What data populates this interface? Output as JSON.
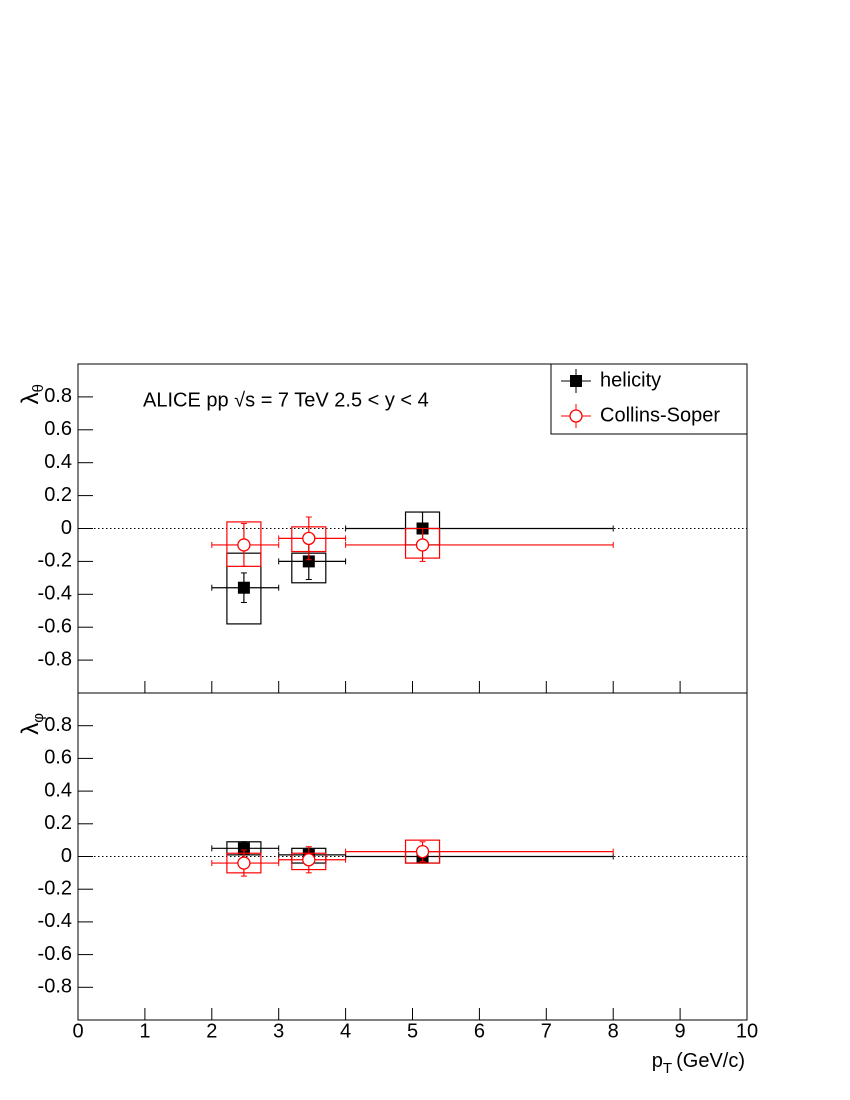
{
  "chart_data": [
    {
      "type": "scatter",
      "annotation": "ALICE  pp √s = 7 TeV    2.5 < y < 4",
      "ylabel": {
        "symbol": "λ",
        "subscript": "θ"
      },
      "xlim": [
        0,
        10
      ],
      "xticks": [
        0,
        1,
        2,
        3,
        4,
        5,
        6,
        7,
        8,
        9,
        10
      ],
      "ylim": [
        -1,
        1
      ],
      "yticks": [
        -0.8,
        -0.6,
        -0.4,
        -0.2,
        0,
        0.2,
        0.4,
        0.6,
        0.8
      ],
      "reference_line": 0,
      "legend": "top-right",
      "series": [
        {
          "name": "helicity",
          "color": "#000000",
          "marker": "square",
          "x": [
            2.48,
            3.45,
            5.15
          ],
          "values": [
            -0.36,
            -0.2,
            0.0
          ],
          "yerr": [
            0.09,
            0.11,
            0.1
          ],
          "xlow": [
            2,
            3,
            4
          ],
          "xhigh": [
            3,
            4,
            8
          ],
          "syst_high": [
            -0.15,
            -0.15,
            0.1
          ],
          "syst_low": [
            -0.58,
            -0.33,
            -0.1
          ]
        },
        {
          "name": "Collins-Soper",
          "color": "#ff0000",
          "marker": "circle-open",
          "x": [
            2.48,
            3.45,
            5.15
          ],
          "values": [
            -0.1,
            -0.06,
            -0.1
          ],
          "yerr": [
            0.13,
            0.13,
            0.1
          ],
          "xlow": [
            2,
            3,
            4
          ],
          "xhigh": [
            3,
            4,
            8
          ],
          "syst_high": [
            0.04,
            0.01,
            0.0
          ],
          "syst_low": [
            -0.23,
            -0.14,
            -0.18
          ]
        }
      ]
    },
    {
      "type": "scatter",
      "ylabel": {
        "symbol": "λ",
        "subscript": "φ"
      },
      "xlabel": {
        "symbol": "p",
        "subscript": "T",
        "unit": "(GeV/c)"
      },
      "xlim": [
        0,
        10
      ],
      "xticks": [
        0,
        1,
        2,
        3,
        4,
        5,
        6,
        7,
        8,
        9,
        10
      ],
      "ylim": [
        -1,
        1
      ],
      "yticks": [
        -0.8,
        -0.6,
        -0.4,
        -0.2,
        0,
        0.2,
        0.4,
        0.6,
        0.8
      ],
      "reference_line": 0,
      "series": [
        {
          "color": "#000000",
          "marker": "square",
          "x": [
            2.48,
            3.45,
            5.15
          ],
          "values": [
            0.05,
            0.01,
            0.0
          ],
          "yerr": [
            0.04,
            0.04,
            0.04
          ],
          "xlow": [
            2,
            3,
            4
          ],
          "xhigh": [
            3,
            4,
            8
          ],
          "syst_high": [
            0.09,
            0.05,
            0.03
          ],
          "syst_low": [
            0.01,
            -0.04,
            -0.04
          ]
        },
        {
          "color": "#ff0000",
          "marker": "circle-open",
          "x": [
            2.48,
            3.45,
            5.15
          ],
          "values": [
            -0.04,
            -0.02,
            0.03
          ],
          "yerr": [
            0.08,
            0.08,
            0.06
          ],
          "xlow": [
            2,
            3,
            4
          ],
          "xhigh": [
            3,
            4,
            8
          ],
          "syst_high": [
            0.02,
            0.02,
            0.1
          ],
          "syst_low": [
            -0.1,
            -0.08,
            -0.04
          ]
        }
      ]
    }
  ]
}
